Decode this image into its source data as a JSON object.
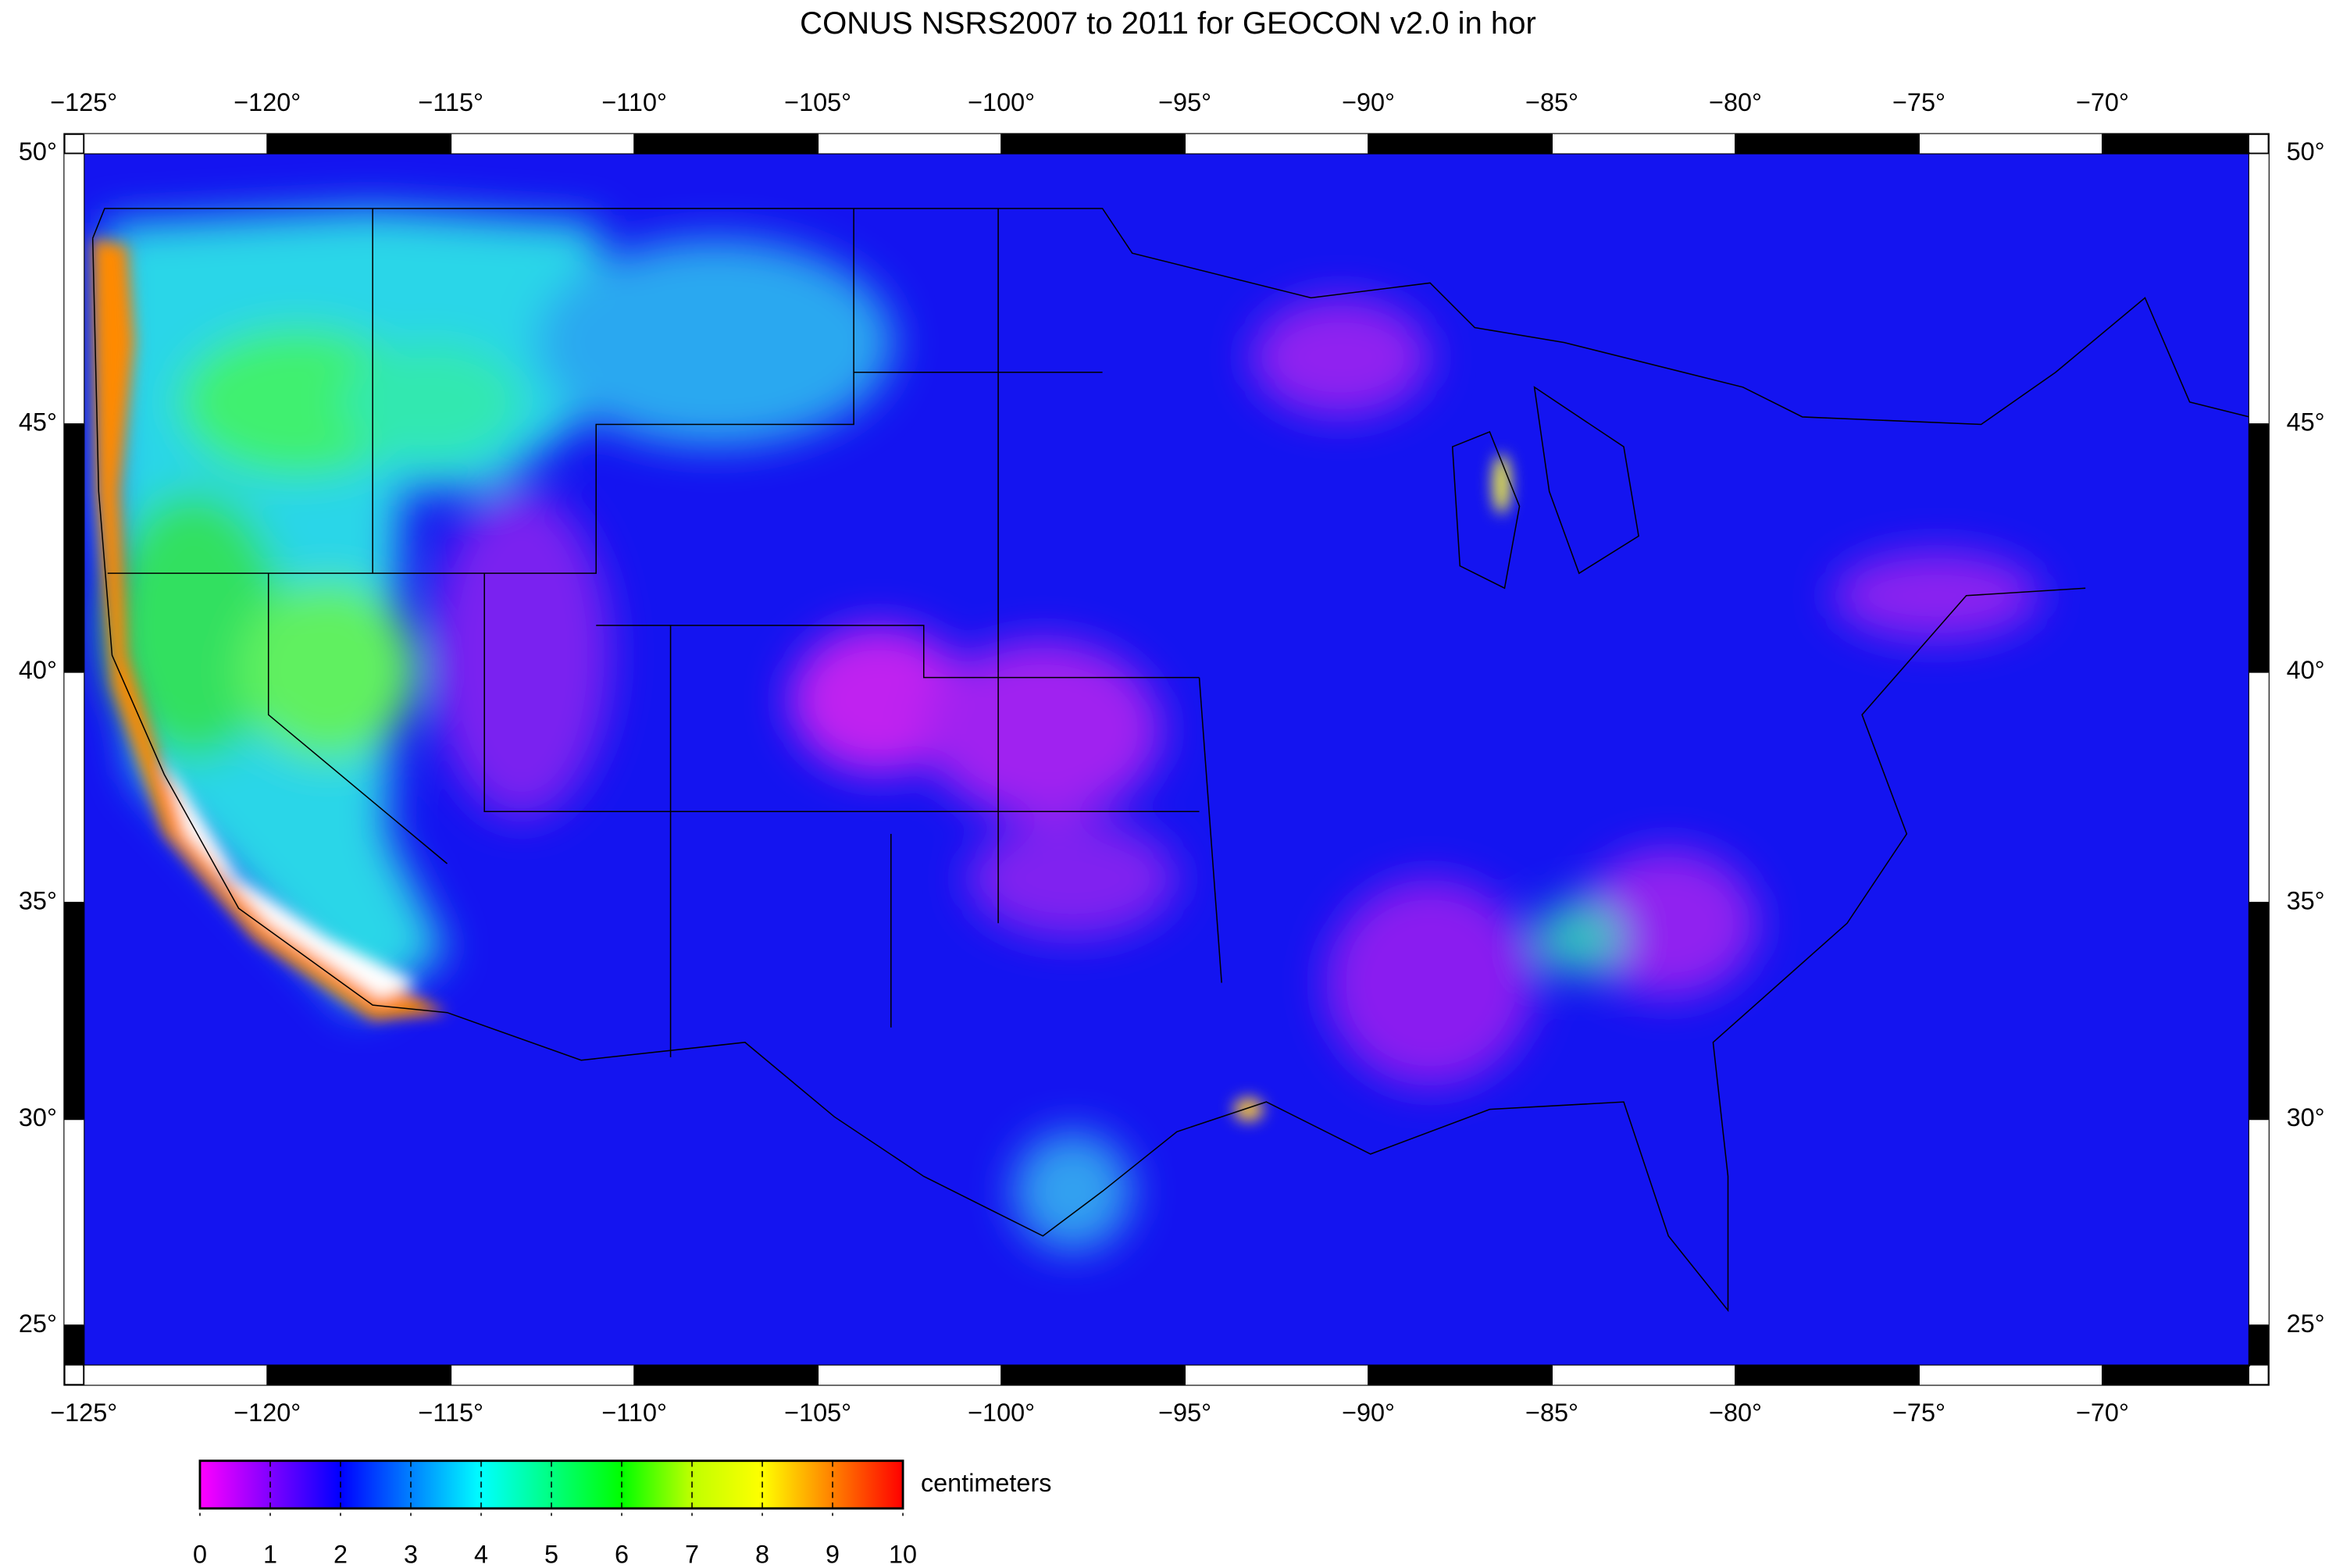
{
  "title": "CONUS NSRS2007 to 2011 for GEOCON v2.0 in hor",
  "map": {
    "projection": "mercator",
    "xlim": [
      -125,
      -66
    ],
    "ylim": [
      24,
      50
    ],
    "xticks": [
      {
        "value": -125,
        "label": "−125°"
      },
      {
        "value": -120,
        "label": "−120°"
      },
      {
        "value": -115,
        "label": "−115°"
      },
      {
        "value": -110,
        "label": "−110°"
      },
      {
        "value": -105,
        "label": "−105°"
      },
      {
        "value": -100,
        "label": "−100°"
      },
      {
        "value": -95,
        "label": "−95°"
      },
      {
        "value": -90,
        "label": "−90°"
      },
      {
        "value": -85,
        "label": "−85°"
      },
      {
        "value": -80,
        "label": "−80°"
      },
      {
        "value": -75,
        "label": "−75°"
      },
      {
        "value": -70,
        "label": "−70°"
      }
    ],
    "yticks": [
      {
        "value": 50,
        "label": "50°"
      },
      {
        "value": 45,
        "label": "45°"
      },
      {
        "value": 40,
        "label": "40°"
      },
      {
        "value": 35,
        "label": "35°"
      },
      {
        "value": 30,
        "label": "30°"
      },
      {
        "value": 25,
        "label": "25°"
      }
    ]
  },
  "colorbar": {
    "label": "centimeters",
    "lim": [
      0,
      10
    ],
    "ticks": [
      0,
      1,
      2,
      3,
      4,
      5,
      6,
      7,
      8,
      9,
      10
    ],
    "colors": [
      "#ff00ff",
      "#8000ff",
      "#0000ff",
      "#0080ff",
      "#00ffff",
      "#00ff80",
      "#00ff00",
      "#c0ff00",
      "#ffff00",
      "#ff8000",
      "#ff0000"
    ]
  }
}
